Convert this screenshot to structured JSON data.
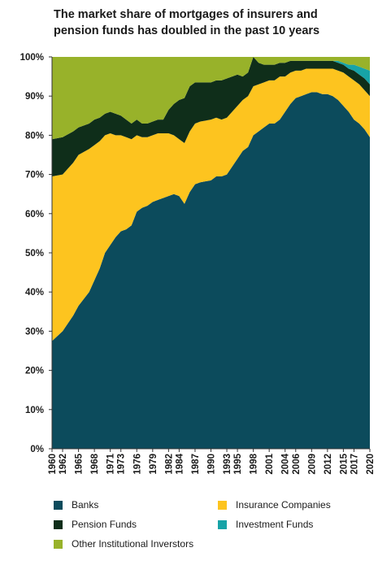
{
  "title_lines": [
    "The market share of mortgages of insurers and",
    "pension funds has doubled in the past 10 years"
  ],
  "colors": {
    "banks": "#0c4b5c",
    "insurance": "#fdc41f",
    "pension": "#0f2e1a",
    "investment": "#17a3a7",
    "other": "#98b22a"
  },
  "chart_data": {
    "type": "area",
    "stacked": true,
    "title": "The market share of mortgages of insurers and pension funds has doubled in the past 10 years",
    "xlabel": "",
    "ylabel": "",
    "xlim": [
      1960,
      2020
    ],
    "ylim": [
      0,
      100
    ],
    "y_ticks": [
      "0%",
      "10%",
      "20%",
      "30%",
      "40%",
      "50%",
      "60%",
      "70%",
      "80%",
      "90%",
      "100%"
    ],
    "x_ticks": [
      "1960",
      "1962",
      "1965",
      "1968",
      "1971",
      "1973",
      "1976",
      "1979",
      "1982",
      "1984",
      "1987",
      "1990",
      "1993",
      "1995",
      "1998",
      "2001",
      "2004",
      "2006",
      "2009",
      "2012",
      "2015",
      "2017",
      "2020"
    ],
    "grid": false,
    "legend_placement": "bottom",
    "x": [
      1960,
      1962,
      1964,
      1965,
      1967,
      1968,
      1969,
      1970,
      1971,
      1972,
      1973,
      1974,
      1975,
      1976,
      1977,
      1978,
      1979,
      1980,
      1981,
      1982,
      1983,
      1984,
      1985,
      1986,
      1987,
      1988,
      1990,
      1991,
      1992,
      1993,
      1994,
      1995,
      1996,
      1997,
      1998,
      1999,
      2000,
      2001,
      2002,
      2003,
      2004,
      2005,
      2006,
      2007,
      2008,
      2009,
      2010,
      2011,
      2012,
      2013,
      2014,
      2015,
      2016,
      2017,
      2018,
      2019,
      2020
    ],
    "series": [
      {
        "name": "Banks",
        "color_key": "banks",
        "values": [
          27.5,
          30,
          34,
          36.5,
          40,
          43,
          46,
          50,
          52,
          54,
          55.5,
          56,
          57,
          60.5,
          61.5,
          62,
          63,
          63.5,
          64,
          64.5,
          65,
          64.5,
          62.5,
          65.5,
          67.5,
          68,
          68.5,
          69.5,
          69.5,
          70,
          72,
          74,
          76,
          77,
          80,
          81,
          82,
          83,
          83,
          84,
          86,
          88,
          89.5,
          90,
          90.5,
          91,
          91,
          90.5,
          90.5,
          90,
          89,
          87.5,
          86,
          84,
          83,
          81.5,
          79.5
        ]
      },
      {
        "name": "Insurance Companies",
        "color_key": "insurance",
        "values": [
          42,
          40,
          39,
          38.5,
          36.5,
          34.5,
          32.5,
          30,
          28.5,
          26,
          24.5,
          23.5,
          22,
          19.5,
          18,
          17.5,
          17,
          17,
          16.5,
          16,
          15,
          14.5,
          15.5,
          15.5,
          15.5,
          15.5,
          15.5,
          15,
          14.5,
          14.5,
          14,
          13.5,
          13,
          13,
          12.5,
          12,
          11.5,
          11,
          11,
          11,
          9,
          8,
          7,
          6.5,
          6.5,
          6,
          6,
          6.5,
          6.5,
          7,
          7.5,
          8.5,
          9,
          10,
          10,
          10,
          10.5
        ]
      },
      {
        "name": "Pension Funds",
        "color_key": "pension",
        "values": [
          9.5,
          9.5,
          8,
          7,
          6.5,
          6.5,
          6,
          5.5,
          5.5,
          5.5,
          5,
          4.5,
          4,
          4,
          3.5,
          3.5,
          3.5,
          3.5,
          3.5,
          6,
          8,
          10,
          11.5,
          11.5,
          10.5,
          10,
          9.5,
          9.5,
          10,
          10,
          9,
          8,
          6,
          6,
          7.5,
          5.5,
          4.5,
          4,
          4,
          3.5,
          3.5,
          3,
          2.5,
          2.5,
          2,
          2,
          2,
          2,
          2,
          2,
          2,
          2,
          2,
          2.5,
          2.5,
          3,
          3
        ]
      },
      {
        "name": "Investment Funds",
        "color_key": "investment",
        "values": [
          0,
          0,
          0,
          0,
          0,
          0,
          0,
          0,
          0,
          0,
          0,
          0,
          0,
          0,
          0,
          0,
          0,
          0,
          0,
          0,
          0,
          0,
          0,
          0,
          0,
          0,
          0,
          0,
          0,
          0,
          0,
          0,
          0,
          0,
          0,
          0,
          0,
          0,
          0,
          0,
          0,
          0,
          0,
          0,
          0,
          0,
          0,
          0,
          0,
          0,
          0.5,
          0.5,
          1,
          1.5,
          2,
          2.5,
          3.5
        ]
      },
      {
        "name": "Other Institutional Inverstors",
        "color_key": "other",
        "values": [
          21,
          20.5,
          19,
          18,
          17,
          16,
          15.5,
          14.5,
          14,
          14.5,
          15,
          16,
          17,
          16,
          17,
          17,
          16.5,
          16,
          16,
          13.5,
          12,
          11,
          10.5,
          7.5,
          6.5,
          6.5,
          6.5,
          6,
          6,
          5.5,
          5,
          4.5,
          5,
          4,
          0,
          1.5,
          2,
          2,
          2,
          1.5,
          1.5,
          1,
          1,
          1,
          1,
          1,
          1,
          1,
          1,
          1,
          1,
          1.5,
          2,
          2,
          2.5,
          3,
          3.5
        ]
      }
    ]
  },
  "legend": [
    {
      "label": "Banks",
      "color_key": "banks",
      "name": "legend-item-banks"
    },
    {
      "label": "Insurance Companies",
      "color_key": "insurance",
      "name": "legend-item-insurance-companies"
    },
    {
      "label": "Pension Funds",
      "color_key": "pension",
      "name": "legend-item-pension-funds"
    },
    {
      "label": "Investment Funds",
      "color_key": "investment",
      "name": "legend-item-investment-funds"
    },
    {
      "label": "Other Institutional Inverstors",
      "color_key": "other",
      "name": "legend-item-other-institutional-investors"
    }
  ]
}
